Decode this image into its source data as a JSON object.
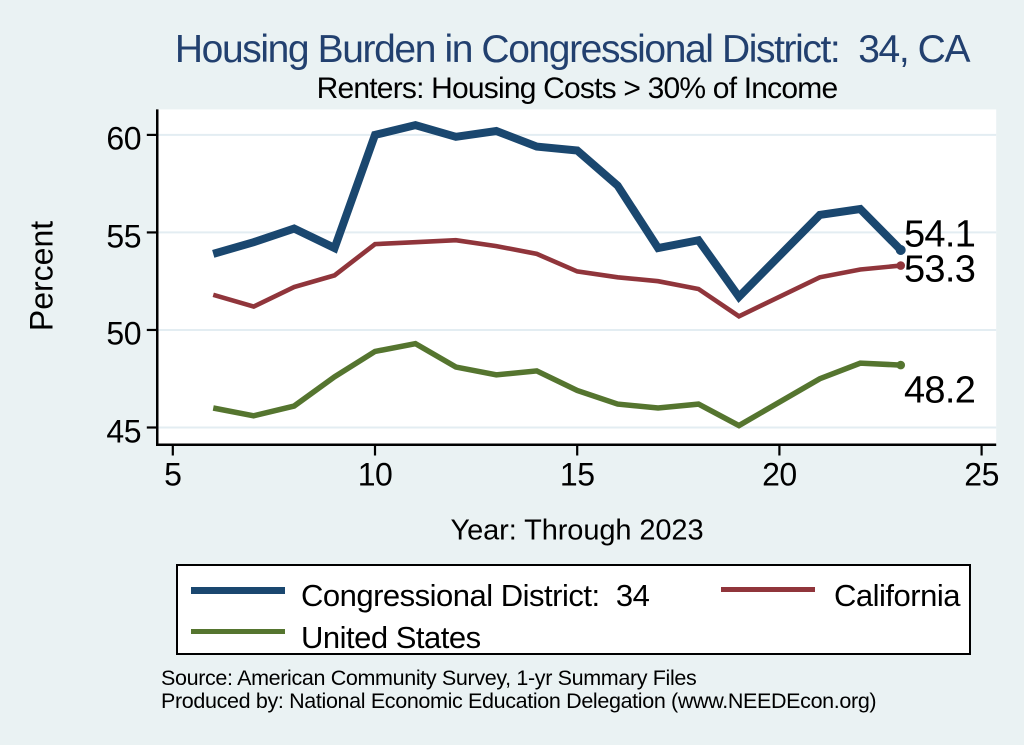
{
  "title": "Housing Burden in Congressional District:  34, CA",
  "subtitle": "Renters: Housing Costs > 30% of Income",
  "colors": {
    "district": "#1a476f",
    "california": "#90353b",
    "us": "#55752f",
    "title_text": "#22406f",
    "background": "#eaf2f3",
    "plot_background": "#ffffff",
    "grid": "#e3edf2",
    "axis": "#000000"
  },
  "chart_data": {
    "type": "line",
    "title": "Housing Burden in Congressional District:  34, CA",
    "subtitle": "Renters: Housing Costs > 30% of Income",
    "xlabel": "Year: Through 2023",
    "ylabel": "Percent",
    "x_ticks": [
      5,
      10,
      15,
      20,
      25
    ],
    "y_ticks": [
      45,
      50,
      55,
      60
    ],
    "xlim": [
      4.6,
      25.4
    ],
    "ylim": [
      44.2,
      61.3
    ],
    "grid": "horizontal",
    "legend_position": "bottom",
    "x": [
      6,
      7,
      8,
      9,
      10,
      11,
      12,
      13,
      14,
      15,
      16,
      17,
      18,
      19,
      21,
      22,
      23
    ],
    "series": [
      {
        "name": "Congressional District:  34",
        "color_key": "district",
        "line_width": 8,
        "end_label": "54.1",
        "values": [
          53.9,
          54.5,
          55.2,
          54.2,
          60.0,
          60.5,
          59.9,
          60.2,
          59.4,
          59.2,
          57.4,
          54.2,
          54.6,
          51.7,
          55.9,
          56.2,
          54.1
        ]
      },
      {
        "name": "California",
        "color_key": "california",
        "line_width": 4.6,
        "end_label": "53.3",
        "values": [
          51.8,
          51.2,
          52.2,
          52.8,
          54.4,
          54.5,
          54.6,
          54.3,
          53.9,
          53.0,
          52.7,
          52.5,
          52.1,
          50.7,
          52.7,
          53.1,
          53.3
        ]
      },
      {
        "name": "United States",
        "color_key": "us",
        "line_width": 5.5,
        "end_label": "48.2",
        "values": [
          46.0,
          45.6,
          46.1,
          47.6,
          48.9,
          49.3,
          48.1,
          47.7,
          47.9,
          46.9,
          46.2,
          46.0,
          46.2,
          45.1,
          47.5,
          48.3,
          48.2
        ]
      }
    ]
  },
  "legend": {
    "items": [
      {
        "label": "Congressional District:  34",
        "color_key": "district"
      },
      {
        "label": "California",
        "color_key": "california"
      },
      {
        "label": "United States",
        "color_key": "us"
      }
    ]
  },
  "notes": [
    "Source: American Community Survey, 1-yr Summary Files",
    "Produced by: National Economic Education Delegation (www.NEEDEcon.org)"
  ]
}
